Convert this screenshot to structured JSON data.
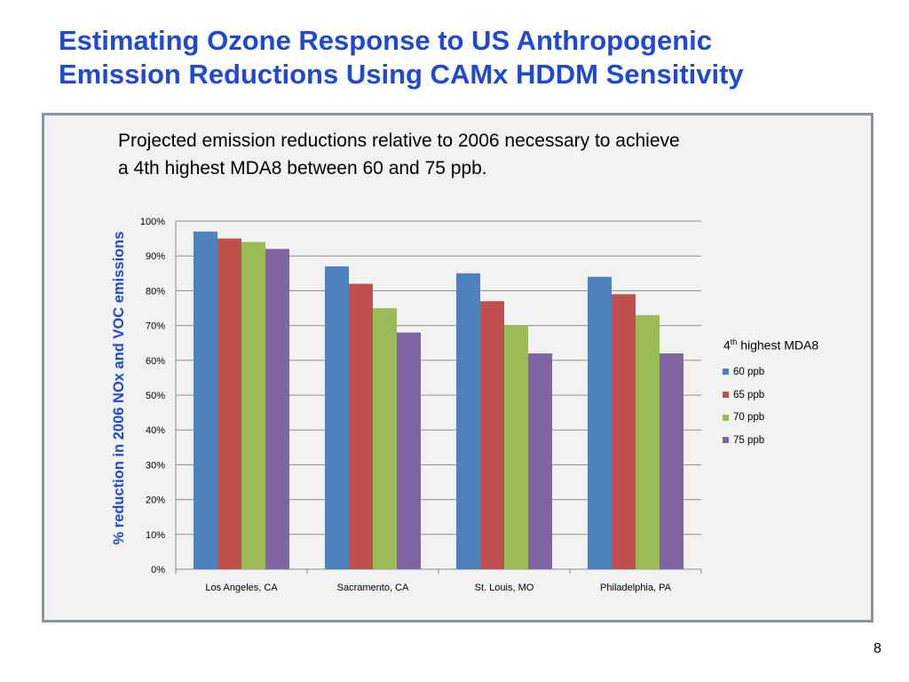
{
  "slide": {
    "title_line1": "Estimating Ozone Response to US Anthropogenic",
    "title_line2": "Emission Reductions Using CAMx HDDM Sensitivity",
    "subtitle_line1": "Projected emission reductions relative to 2006 necessary to achieve",
    "subtitle_line2": "a 4th highest MDA8 between 60 and 75 ppb.",
    "page_number": "8"
  },
  "legend": {
    "title_prefix": "4",
    "title_sup": "th",
    "title_suffix": " highest MDA8"
  },
  "colors": {
    "title": "#1f49d1",
    "panel_bg": "#f2f2f2",
    "panel_border": "#8497a3"
  },
  "chart_data": {
    "type": "bar",
    "ylabel": "% reduction in 2006 NOx and VOC emissions",
    "xlabel": "",
    "ylim": [
      0,
      100
    ],
    "yticks": [
      0,
      10,
      20,
      30,
      40,
      50,
      60,
      70,
      80,
      90,
      100
    ],
    "ytick_labels": [
      "0%",
      "10%",
      "20%",
      "30%",
      "40%",
      "50%",
      "60%",
      "70%",
      "80%",
      "90%",
      "100%"
    ],
    "grid": true,
    "legend_position": "right",
    "categories": [
      "Los Angeles, CA",
      "Sacramento, CA",
      "St. Louis, MO",
      "Philadelphia, PA"
    ],
    "series": [
      {
        "name": "60 ppb",
        "color": "#4f81bd",
        "values": [
          97,
          87,
          85,
          84
        ]
      },
      {
        "name": "65 ppb",
        "color": "#c0504d",
        "values": [
          95,
          82,
          77,
          79
        ]
      },
      {
        "name": "70 ppb",
        "color": "#9bbb59",
        "values": [
          94,
          75,
          70,
          73
        ]
      },
      {
        "name": "75 ppb",
        "color": "#8064a2",
        "values": [
          92,
          68,
          62,
          62
        ]
      }
    ]
  }
}
